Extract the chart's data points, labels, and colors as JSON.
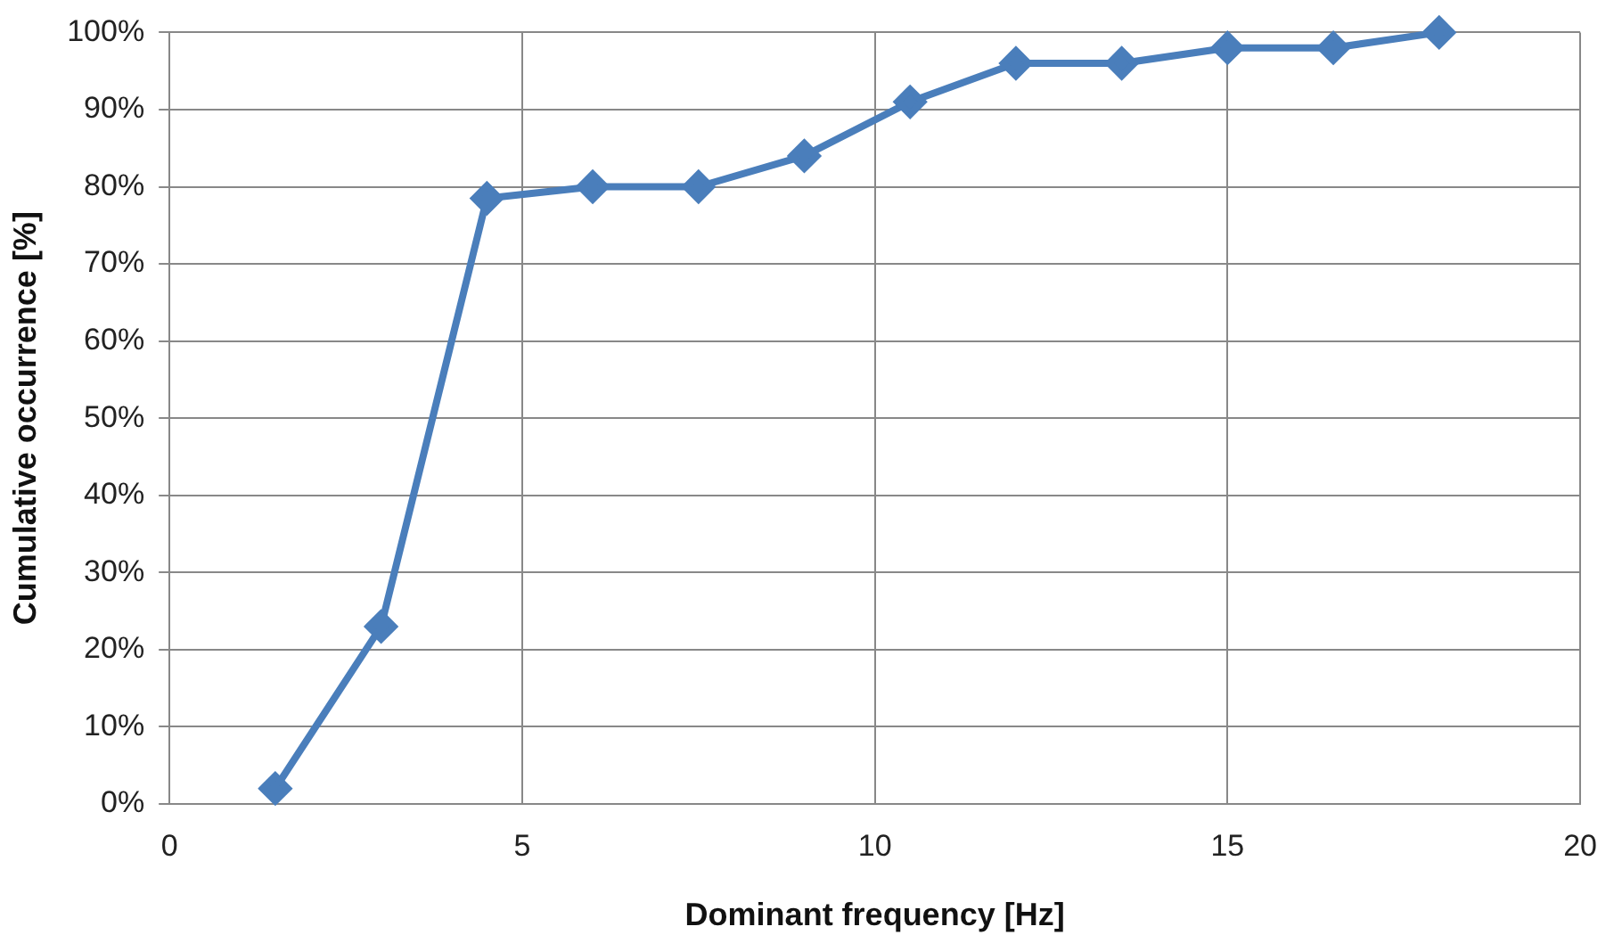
{
  "chart_data": {
    "type": "line",
    "xlabel": "Dominant frequency [Hz]",
    "ylabel": "Cumulative occurrence [%]",
    "x": [
      1.5,
      3,
      4.5,
      6,
      7.5,
      9,
      10.5,
      12,
      13.5,
      15,
      16.5,
      18
    ],
    "series": [
      {
        "color": "#4a7ebb",
        "values": [
          2,
          23,
          78.5,
          80,
          80,
          84,
          91,
          96,
          96,
          98,
          98,
          100
        ]
      }
    ],
    "xlim": [
      0,
      20
    ],
    "xticks": [
      0,
      5,
      10,
      15,
      20
    ],
    "ylim": [
      0,
      100
    ],
    "yticks": [
      {
        "value": 0,
        "label": "0%"
      },
      {
        "value": 10,
        "label": "10%"
      },
      {
        "value": 20,
        "label": "20%"
      },
      {
        "value": 30,
        "label": "30%"
      },
      {
        "value": 40,
        "label": "40%"
      },
      {
        "value": 50,
        "label": "50%"
      },
      {
        "value": 60,
        "label": "60%"
      },
      {
        "value": 70,
        "label": "70%"
      },
      {
        "value": 80,
        "label": "80%"
      },
      {
        "value": 90,
        "label": "90%"
      },
      {
        "value": 100,
        "label": "100%"
      }
    ],
    "grid": true,
    "legend": false,
    "marker": "diamond",
    "line_style": "solid"
  }
}
